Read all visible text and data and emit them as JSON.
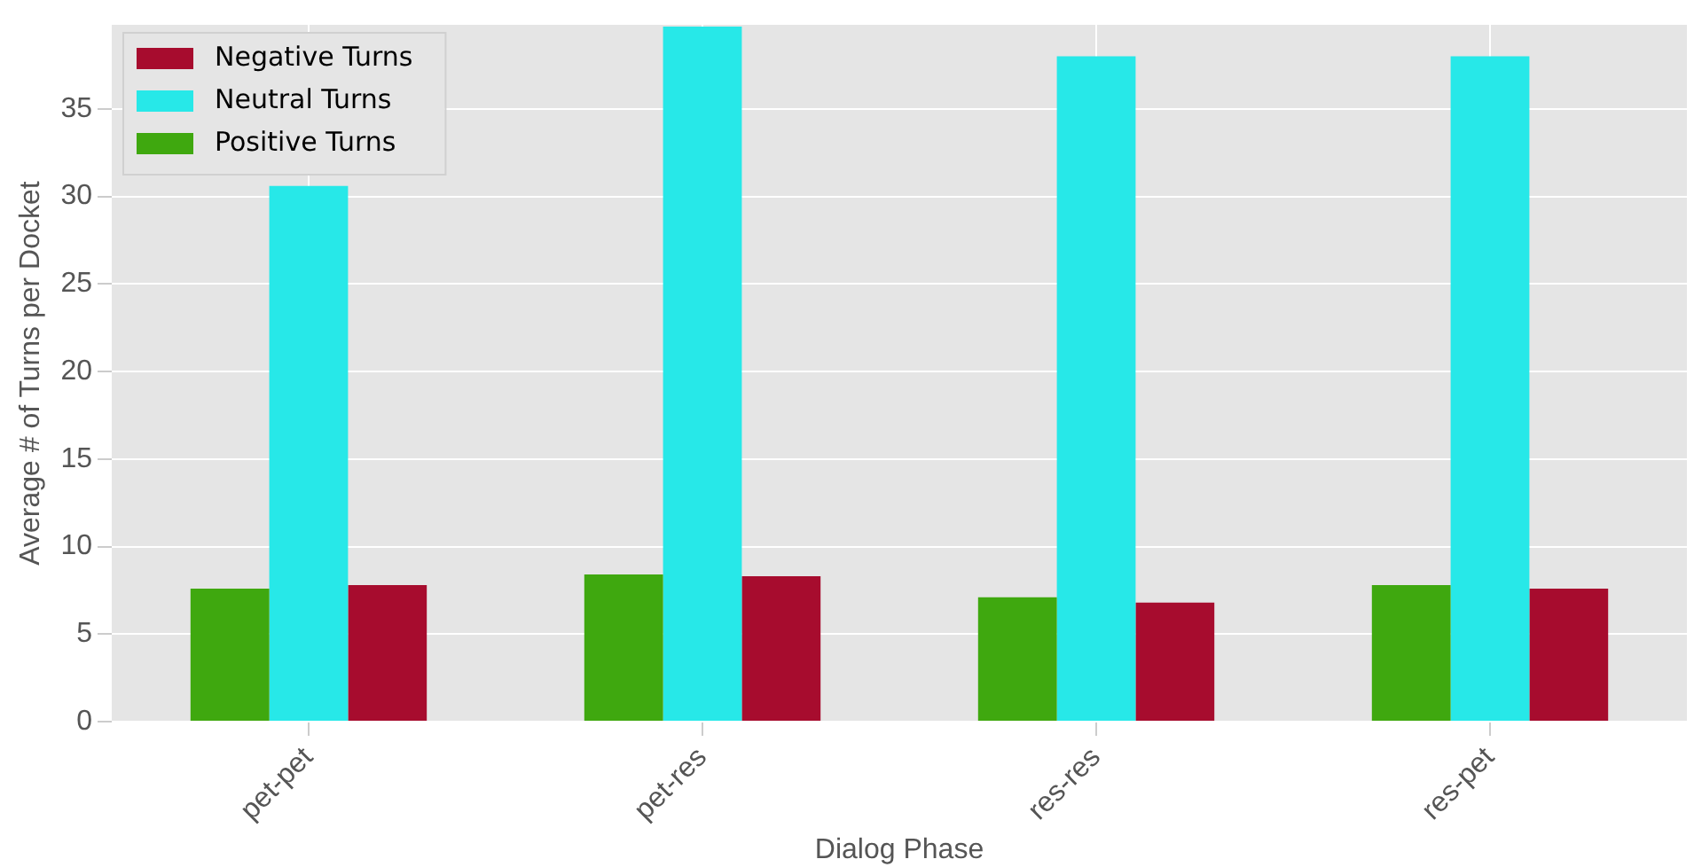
{
  "chart_data": {
    "type": "bar",
    "xlabel": "Dialog Phase",
    "ylabel": "Average # of Turns per Docket",
    "categories": [
      "pet-pet",
      "pet-res",
      "res-res",
      "res-pet"
    ],
    "series": [
      {
        "name": "Positive Turns",
        "color": "#3fa80f",
        "values": [
          7.6,
          8.4,
          7.1,
          7.8
        ]
      },
      {
        "name": "Neutral Turns",
        "color": "#27e8e8",
        "values": [
          30.6,
          39.7,
          38.0,
          38.0
        ]
      },
      {
        "name": "Negative Turns",
        "color": "#a70c2e",
        "values": [
          7.8,
          8.3,
          6.8,
          7.6
        ]
      }
    ],
    "ylim": [
      0,
      39.8
    ],
    "yticks": [
      0,
      5,
      10,
      15,
      20,
      25,
      30,
      35
    ],
    "grid": true,
    "legend": "top left"
  }
}
